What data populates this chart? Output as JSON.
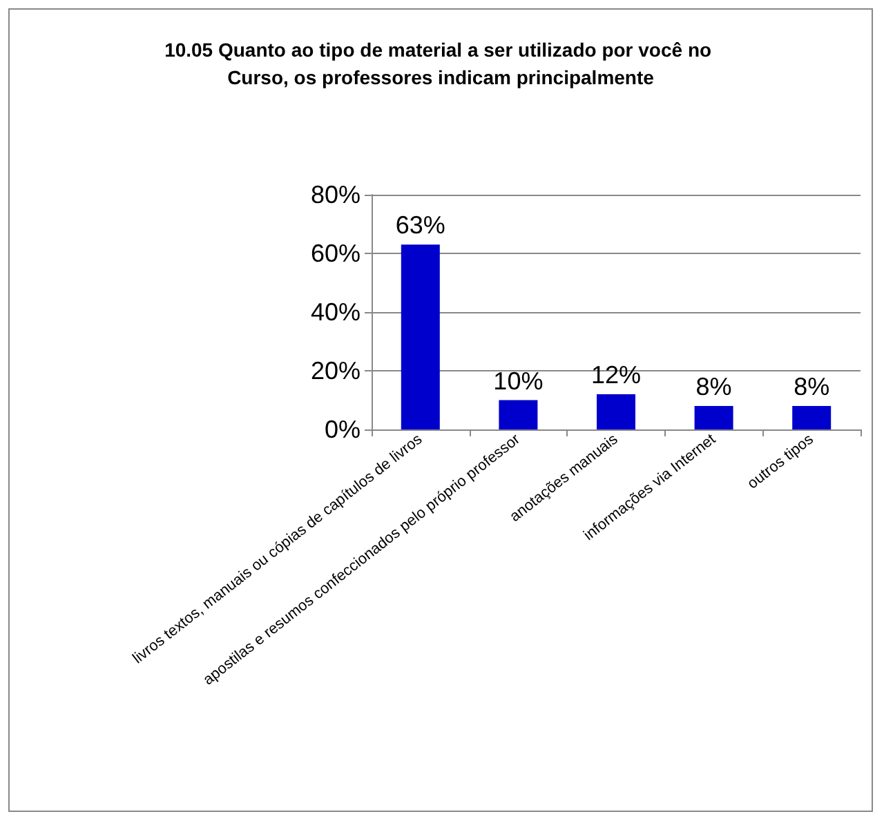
{
  "chart_data": {
    "type": "bar",
    "title": "10.05 Quanto ao tipo de material a ser utilizado por você no Curso, os professores indicam principalmente",
    "categories": [
      "livros textos, manuais ou cópias de capítulos de livros",
      "apostilas e resumos confeccionados pelo próprio professor",
      "anotações manuais",
      "informações via Internet",
      "outros tipos"
    ],
    "values": [
      63,
      10,
      12,
      8,
      8
    ],
    "value_labels": [
      "63%",
      "10%",
      "12%",
      "8%",
      "8%"
    ],
    "color": "#0000cc",
    "ylim": [
      0,
      80
    ],
    "yticks": [
      {
        "value": 0,
        "label": "0%"
      },
      {
        "value": 20,
        "label": "20%"
      },
      {
        "value": 40,
        "label": "40%"
      },
      {
        "value": 60,
        "label": "60%"
      },
      {
        "value": 80,
        "label": "80%"
      }
    ],
    "grid": "y"
  }
}
